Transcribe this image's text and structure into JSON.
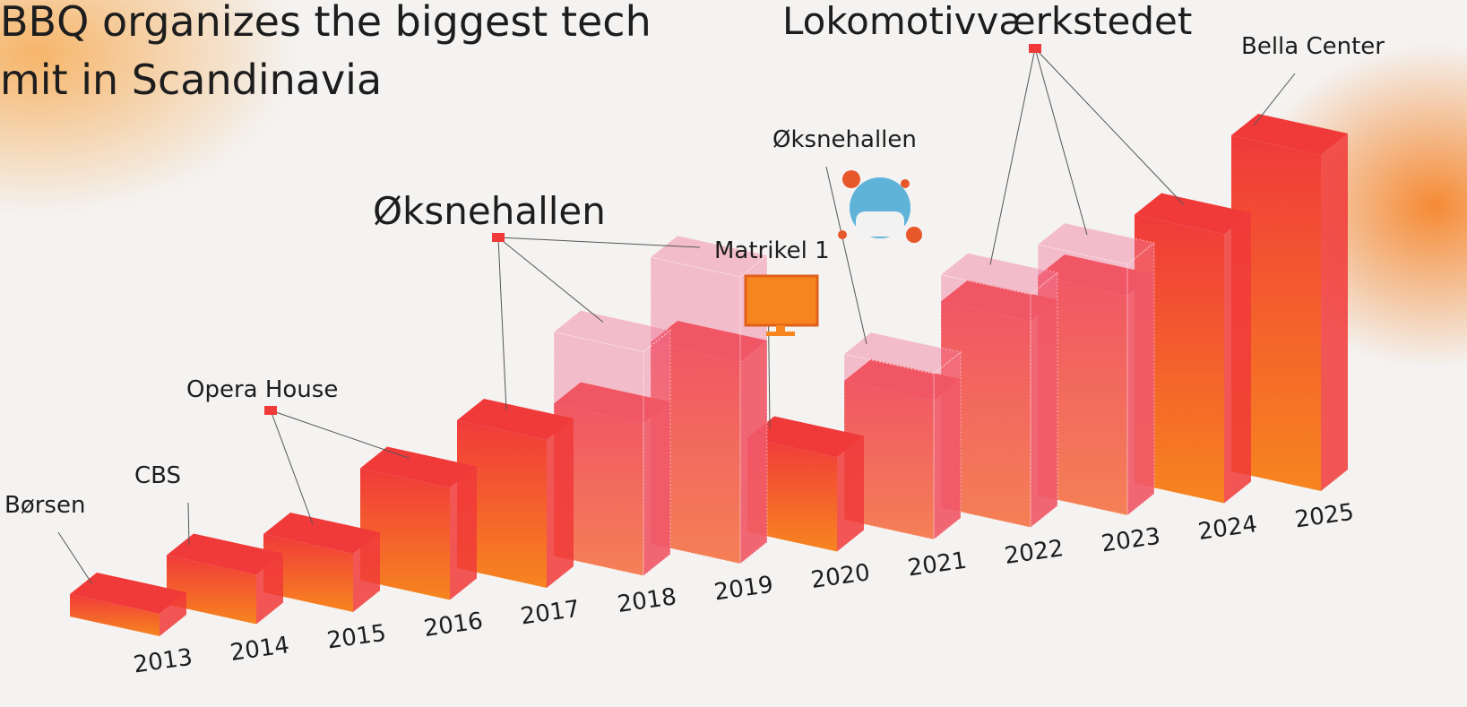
{
  "chart_data": {
    "type": "bar3d",
    "title_lines": [
      "BBQ organizes the biggest tech",
      "mit in Scandinavia"
    ],
    "categories": [
      "2013",
      "2014",
      "2015",
      "2016",
      "2017",
      "2018",
      "2019",
      "2020",
      "2021",
      "2022",
      "2023",
      "2024",
      "2025"
    ],
    "values": [
      25,
      55,
      65,
      125,
      165,
      170,
      225,
      105,
      155,
      230,
      245,
      300,
      375
    ],
    "outline_values": [
      null,
      null,
      null,
      null,
      null,
      250,
      320,
      null,
      185,
      260,
      280,
      null,
      null
    ],
    "color_top": "#f03a3a",
    "color_bottom": "#f7851f",
    "outline_color": "#f27a9a",
    "venues": [
      {
        "label": "Børsen"
      },
      {
        "label": "CBS"
      },
      {
        "label": "Opera House"
      },
      {
        "label": "Øksnehallen"
      },
      {
        "label": "Matrikel 1"
      },
      {
        "label": "Øksnehallen"
      },
      {
        "label": "Lokomotivværkstedet"
      },
      {
        "label": "Bella Center"
      }
    ]
  }
}
